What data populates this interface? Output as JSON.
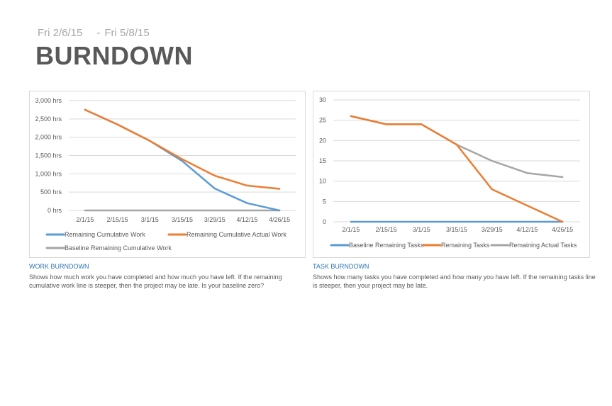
{
  "header": {
    "start_date": "Fri 2/6/15",
    "separator": "-",
    "end_date": "Fri 5/8/15",
    "title": "BURNDOWN"
  },
  "colors": {
    "blue": "#5b9bd5",
    "orange": "#ed7d31",
    "gray": "#a5a5a5",
    "grid": "#d9d9d9",
    "caption_title": "#2e75b6"
  },
  "chart_data": [
    {
      "id": "work",
      "type": "line",
      "title": "WORK BURNDOWN",
      "description": "Shows how much work you have completed and how much you have left. If the remaining cumulative work line is steeper, then the project may be late. Is your baseline zero?",
      "x": [
        "2/1/15",
        "2/15/15",
        "3/1/15",
        "3/15/15",
        "3/29/15",
        "4/12/15",
        "4/26/15"
      ],
      "y_ticks": [
        "0 hrs",
        "500 hrs",
        "1,000 hrs",
        "1,500 hrs",
        "2,000 hrs",
        "2,500 hrs",
        "3,000 hrs"
      ],
      "ylim": [
        0,
        3000
      ],
      "grid": true,
      "legend_position": "bottom",
      "series": [
        {
          "name": "Remaining Cumulative Work",
          "color": "#5b9bd5",
          "values": [
            2750,
            2350,
            1900,
            1350,
            600,
            200,
            0
          ]
        },
        {
          "name": "Remaining Cumulative Actual Work",
          "color": "#ed7d31",
          "values": [
            2750,
            2350,
            1900,
            1400,
            950,
            680,
            590
          ]
        },
        {
          "name": "Baseline Remaining Cumulative Work",
          "color": "#a5a5a5",
          "values": [
            0,
            0,
            0,
            0,
            0,
            0,
            0
          ]
        }
      ]
    },
    {
      "id": "task",
      "type": "line",
      "title": "TASK BURNDOWN",
      "description": "Shows how many tasks you have completed and how many you have left. If the remaining tasks line is steeper, then your project may be late.",
      "x": [
        "2/1/15",
        "2/15/15",
        "3/1/15",
        "3/15/15",
        "3/29/15",
        "4/12/15",
        "4/26/15"
      ],
      "y_ticks": [
        "0",
        "5",
        "10",
        "15",
        "20",
        "25",
        "30"
      ],
      "ylim": [
        0,
        30
      ],
      "grid": true,
      "legend_position": "bottom",
      "series": [
        {
          "name": "Baseline Remaining Tasks",
          "color": "#5b9bd5",
          "values": [
            0,
            0,
            0,
            0,
            0,
            0,
            0
          ]
        },
        {
          "name": "Remaining Tasks",
          "color": "#ed7d31",
          "values": [
            26,
            24,
            24,
            19,
            8,
            4,
            0
          ]
        },
        {
          "name": "Remaining Actual Tasks",
          "color": "#a5a5a5",
          "values": [
            26,
            24,
            24,
            19,
            15,
            12,
            11
          ]
        }
      ]
    }
  ]
}
